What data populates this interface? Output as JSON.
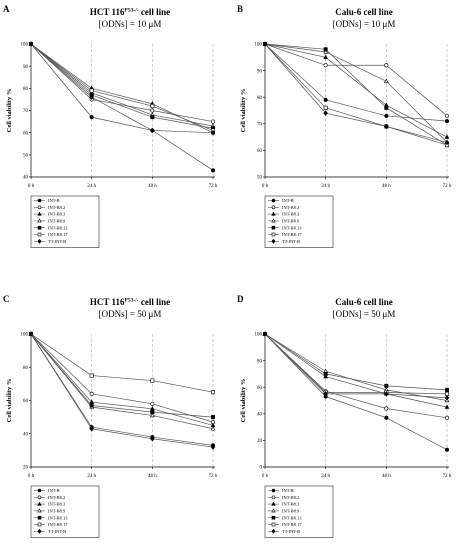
{
  "chart_data": [
    {
      "type": "line",
      "panel_label": "A",
      "title": "HCT 116",
      "title_superscript": "P53-/-",
      "title_suffix": " cell line",
      "subtitle": "[ODNs] = 10 μM",
      "xlabel": "",
      "ylabel": "Cell viability %",
      "x": [
        "0 h",
        "24 h",
        "48 h",
        "72 h"
      ],
      "ylim": [
        40,
        100
      ],
      "yticks": [
        40,
        50,
        60,
        70,
        80,
        90,
        100
      ],
      "legend_position": "bottom-left",
      "series": [
        {
          "name": "INT-B",
          "values": [
            100,
            67,
            61,
            43
          ]
        },
        {
          "name": "INT-B8.2",
          "values": [
            100,
            75,
            70,
            65
          ]
        },
        {
          "name": "INT-B8.3",
          "values": [
            100,
            80,
            73,
            60
          ]
        },
        {
          "name": "INT-B8.9",
          "values": [
            100,
            78,
            68,
            63
          ]
        },
        {
          "name": "INT-B8.13",
          "values": [
            100,
            77,
            67,
            62
          ]
        },
        {
          "name": "INT-B8.17",
          "values": [
            100,
            79,
            72,
            61
          ]
        },
        {
          "name": "TT-INT-B",
          "values": [
            100,
            76,
            61,
            60
          ]
        }
      ]
    },
    {
      "type": "line",
      "panel_label": "B",
      "title": "Calu-6 cell line",
      "title_superscript": "",
      "title_suffix": "",
      "subtitle": "[ODNs] = 10 μM",
      "xlabel": "",
      "ylabel": "Cell viability %",
      "x": [
        "0 h",
        "24 h",
        "48 h",
        "72 h"
      ],
      "ylim": [
        50,
        100
      ],
      "yticks": [
        50,
        60,
        70,
        80,
        90,
        100
      ],
      "legend_position": "bottom-left",
      "series": [
        {
          "name": "INT-B",
          "values": [
            100,
            79,
            73,
            71
          ]
        },
        {
          "name": "INT-B8.2",
          "values": [
            100,
            92,
            92,
            73
          ]
        },
        {
          "name": "INT-B8.3",
          "values": [
            100,
            95,
            77,
            65
          ]
        },
        {
          "name": "INT-B8.9",
          "values": [
            100,
            97,
            86,
            63
          ]
        },
        {
          "name": "INT-B8.13",
          "values": [
            100,
            98,
            76,
            62
          ]
        },
        {
          "name": "INT-B8.17",
          "values": [
            100,
            76,
            69,
            62
          ]
        },
        {
          "name": "TT-INT-B",
          "values": [
            100,
            74,
            69,
            63
          ]
        }
      ]
    },
    {
      "type": "line",
      "panel_label": "C",
      "title": "HCT 116",
      "title_superscript": "P53-/-",
      "title_suffix": " cell line",
      "subtitle": "[ODNs] = 50 μM",
      "xlabel": "",
      "ylabel": "Cell viability %",
      "x": [
        "0 h",
        "24 h",
        "48 h",
        "72 h"
      ],
      "ylim": [
        20,
        100
      ],
      "yticks": [
        20,
        40,
        60,
        80,
        100
      ],
      "legend_position": "bottom-left",
      "series": [
        {
          "name": "INT-B",
          "values": [
            100,
            44,
            38,
            33
          ]
        },
        {
          "name": "INT-B8.2",
          "values": [
            100,
            64,
            58,
            47
          ]
        },
        {
          "name": "INT-B8.3",
          "values": [
            100,
            59,
            55,
            45
          ]
        },
        {
          "name": "INT-B8.9",
          "values": [
            100,
            56,
            51,
            43
          ]
        },
        {
          "name": "INT-B8.13",
          "values": [
            100,
            57,
            53,
            50
          ]
        },
        {
          "name": "INT-B8.17",
          "values": [
            100,
            75,
            72,
            65
          ]
        },
        {
          "name": "TT-INT-B",
          "values": [
            100,
            43,
            37,
            32
          ]
        }
      ]
    },
    {
      "type": "line",
      "panel_label": "D",
      "title": "Calu-6 cell line",
      "title_superscript": "",
      "title_suffix": "",
      "subtitle": "[ODNs] = 50 μM",
      "xlabel": "",
      "ylabel": "Cell viability %",
      "x": [
        "0 h",
        "24 h",
        "48 h",
        "72 h"
      ],
      "ylim": [
        0,
        100
      ],
      "yticks": [
        0,
        20,
        40,
        60,
        80,
        100
      ],
      "legend_position": "bottom-left",
      "series": [
        {
          "name": "INT-B",
          "values": [
            100,
            53,
            37,
            13
          ]
        },
        {
          "name": "INT-B8.2",
          "values": [
            100,
            57,
            44,
            37
          ]
        },
        {
          "name": "INT-B8.3",
          "values": [
            100,
            68,
            55,
            45
          ]
        },
        {
          "name": "INT-B8.9",
          "values": [
            100,
            72,
            58,
            50
          ]
        },
        {
          "name": "INT-B8.13",
          "values": [
            100,
            70,
            61,
            58
          ]
        },
        {
          "name": "INT-B8.17",
          "values": [
            100,
            56,
            56,
            55
          ]
        },
        {
          "name": "TT-INT-B",
          "values": [
            100,
            55,
            55,
            52
          ]
        }
      ]
    }
  ],
  "marker_styles": [
    {
      "shape": "circle",
      "fill": "#000000"
    },
    {
      "shape": "circle",
      "fill": "#ffffff"
    },
    {
      "shape": "triangle",
      "fill": "#000000"
    },
    {
      "shape": "triangle",
      "fill": "#ffffff"
    },
    {
      "shape": "square",
      "fill": "#000000"
    },
    {
      "shape": "square",
      "fill": "#ffffff"
    },
    {
      "shape": "diamond",
      "fill": "#000000"
    }
  ],
  "colors": {
    "line": "#555555",
    "grid": "#b0b0b0",
    "axis": "#000000"
  }
}
